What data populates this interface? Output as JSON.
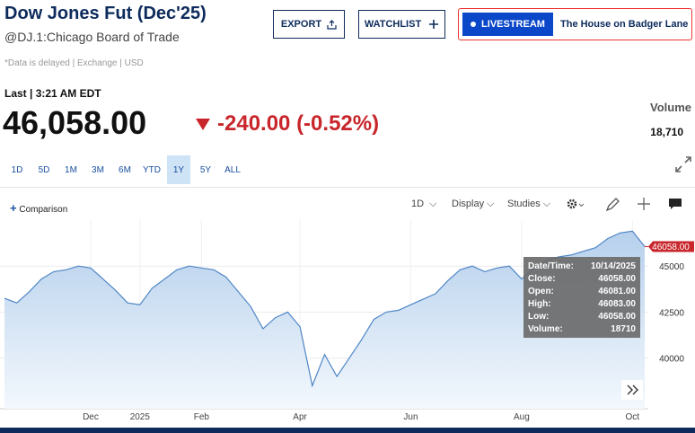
{
  "header": {
    "title": "Dow Jones Fut (Dec'25)",
    "subtitle": "@DJ.1:Chicago Board of Trade",
    "note": "*Data is delayed | Exchange | USD"
  },
  "buttons": {
    "export": "EXPORT",
    "watchlist": "WATCHLIST",
    "livestream": "LIVESTREAM",
    "livestream_show": "The House on Badger Lane"
  },
  "quote": {
    "last": "Last | 3:21 AM EDT",
    "price": "46,058.00",
    "change": "-240.00 (-0.52%)",
    "volume_label": "Volume",
    "volume": "18,710"
  },
  "ranges": [
    "1D",
    "5D",
    "1M",
    "3M",
    "6M",
    "YTD",
    "1Y",
    "5Y",
    "ALL"
  ],
  "selected_range": "1Y",
  "toolbar": {
    "comparison": "Comparison",
    "interval": "1D",
    "display": "Display",
    "studies": "Studies"
  },
  "tooltip": {
    "rows": [
      [
        "Date/Time:",
        "10/14/2025"
      ],
      [
        "Close:",
        "46058.00"
      ],
      [
        "Open:",
        "46081.00"
      ],
      [
        "High:",
        "46083.00"
      ],
      [
        "Low:",
        "46058.00"
      ],
      [
        "Volume:",
        "18710"
      ]
    ]
  },
  "chart_data": {
    "type": "area",
    "categories": [
      null,
      null,
      null,
      null,
      null,
      null,
      null,
      "Dec",
      null,
      null,
      null,
      "2025",
      null,
      null,
      null,
      null,
      "Feb",
      null,
      null,
      null,
      null,
      null,
      null,
      null,
      "Apr",
      null,
      null,
      null,
      null,
      null,
      null,
      null,
      null,
      "Jun",
      null,
      null,
      null,
      null,
      null,
      null,
      null,
      null,
      "Aug",
      null,
      null,
      null,
      null,
      null,
      null,
      null,
      null,
      "Oct",
      null
    ],
    "values": [
      43250,
      43000,
      43600,
      44300,
      44700,
      44800,
      45000,
      44900,
      44300,
      43700,
      43000,
      42900,
      43800,
      44300,
      44800,
      45000,
      44900,
      44800,
      44400,
      43600,
      42800,
      41600,
      42200,
      42500,
      41700,
      38500,
      40200,
      39000,
      40000,
      41000,
      42100,
      42500,
      42600,
      42900,
      43200,
      43500,
      44200,
      44800,
      45000,
      44700,
      44900,
      45000,
      44300,
      44900,
      45300,
      45500,
      45600,
      45800,
      46000,
      46500,
      46800,
      46900,
      46058
    ],
    "color": "#4f86c6",
    "ylim": [
      37250,
      47500
    ],
    "yticks": [
      40000,
      42500,
      45000
    ],
    "grid": true,
    "last_value_label": "46058.00"
  }
}
